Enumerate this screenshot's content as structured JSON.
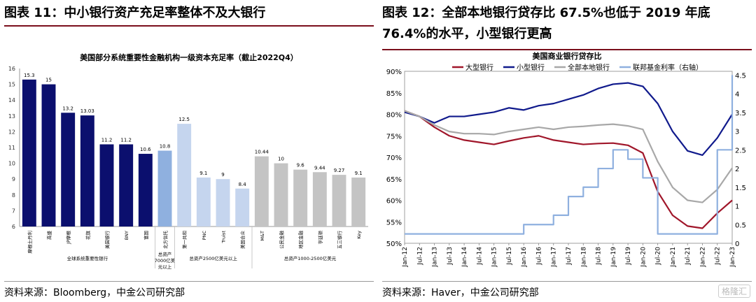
{
  "left": {
    "figure_title": "图表 11：中小银行资产充足率整体不及大银行",
    "source": "资料来源：Bloomberg，中金公司研究部"
  },
  "right": {
    "figure_title": "图表 12：全部本地银行贷存比 67.5%也低于 2019 年底 76.4%的水平，小型银行更高",
    "source": "资料来源：Haver，中金公司研究部"
  },
  "watermark": "格隆汇",
  "chart_data": [
    {
      "type": "bar",
      "title": "美国部分系统重要性金融机构一级资本充足率（截止2022Q4）",
      "categories": [
        "摩根士丹利",
        "高盛",
        "JP摩根",
        "花旗",
        "美国银行",
        "BNY",
        "富国",
        "北方信托",
        "第一共和",
        "PNC",
        "Truist",
        "美国合众",
        "M&T",
        "公民金融",
        "地区金融",
        "亨廷顿",
        "五三银行",
        "Key"
      ],
      "values": [
        15.3,
        15,
        13.2,
        13.03,
        11.2,
        11.2,
        10.6,
        10.8,
        12.5,
        9.1,
        9,
        8.4,
        10.44,
        10,
        9.6,
        9.44,
        9.27,
        9.1
      ],
      "value_labels": [
        "15.3",
        "15",
        "13.2",
        "13.03",
        "11.2",
        "11.2",
        "10.6",
        "10.8",
        "12.5",
        "9.1",
        "9",
        "8.4",
        "10.44",
        "10",
        "9.6",
        "9.44",
        "9.27",
        "9.1"
      ],
      "groups": [
        {
          "label": "全球系统重要性银行",
          "start": 0,
          "end": 6,
          "color": "#0b0f6e"
        },
        {
          "label": "总资产7000亿美元以上",
          "start": 7,
          "end": 7,
          "color": "#8fb0df"
        },
        {
          "label": "总资产2500亿美元以上",
          "start": 8,
          "end": 11,
          "color": "#c5d5ee"
        },
        {
          "label": "总资产1000-2500亿美元",
          "start": 12,
          "end": 17,
          "color": "#c4c4c4"
        }
      ],
      "ylim": [
        6,
        16
      ],
      "yticks": [
        6,
        7,
        8,
        9,
        10,
        11,
        12,
        13,
        14,
        15,
        16
      ],
      "grid": false
    },
    {
      "type": "line",
      "title": "美国商业银行贷存比",
      "x_ticks": [
        "Jan-12",
        "Jul-12",
        "Jan-13",
        "Jul-13",
        "Jan-14",
        "Jul-14",
        "Jan-15",
        "Jul-15",
        "Jan-16",
        "Jul-16",
        "Jan-17",
        "Jul-17",
        "Jan-18",
        "Jul-18",
        "Jan-19",
        "Jul-19",
        "Jan-20",
        "Jul-20",
        "Jan-21",
        "Jul-21",
        "Jan-22",
        "Jul-22",
        "Jan-23"
      ],
      "y_left_ticks": [
        "90%",
        "85%",
        "80%",
        "75%",
        "70%",
        "65%",
        "60%",
        "55%",
        "50%"
      ],
      "y_right_ticks": [
        "4.5",
        "4",
        "3.5",
        "3",
        "2.5",
        "2",
        "1.5",
        "1",
        "0.5",
        "0"
      ],
      "ylim_left": [
        50,
        90
      ],
      "ylim_right": [
        0,
        4.6
      ],
      "legend_position": "top",
      "series": [
        {
          "name": "大型银行",
          "axis": "left",
          "color": "#a0162a",
          "x": [
            "Jan-12",
            "Jul-12",
            "Jan-13",
            "Jul-13",
            "Jan-14",
            "Jul-14",
            "Jan-15",
            "Jul-15",
            "Jan-16",
            "Jul-16",
            "Jan-17",
            "Jul-17",
            "Jan-18",
            "Jul-18",
            "Jan-19",
            "Jul-19",
            "Jan-20",
            "Jul-20",
            "Jan-21",
            "Jul-21",
            "Jan-22",
            "Jul-22",
            "Jan-23"
          ],
          "values": [
            80.8,
            79.5,
            77,
            75,
            74,
            73.5,
            73,
            73.8,
            74.5,
            75,
            74,
            73.5,
            73,
            73.2,
            73.3,
            72.8,
            71,
            62,
            56.5,
            54,
            53.5,
            57,
            60
          ]
        },
        {
          "name": "小型银行",
          "axis": "left",
          "color": "#101a8c",
          "x": [
            "Jan-12",
            "Jul-12",
            "Jan-13",
            "Jul-13",
            "Jan-14",
            "Jul-14",
            "Jan-15",
            "Jul-15",
            "Jan-16",
            "Jul-16",
            "Jan-17",
            "Jul-17",
            "Jan-18",
            "Jul-18",
            "Jan-19",
            "Jul-19",
            "Jan-20",
            "Jul-20",
            "Jan-21",
            "Jul-21",
            "Jan-22",
            "Jul-22",
            "Jan-23"
          ],
          "values": [
            80.5,
            79.5,
            78,
            79.5,
            79.5,
            80,
            80.5,
            81.5,
            81,
            82,
            82.5,
            83.5,
            84.5,
            86,
            87,
            87.3,
            86.5,
            82.5,
            76,
            71.5,
            70.5,
            74.5,
            80
          ]
        },
        {
          "name": "全部本地银行",
          "axis": "left",
          "color": "#a8a8a8",
          "x": [
            "Jan-12",
            "Jul-12",
            "Jan-13",
            "Jul-13",
            "Jan-14",
            "Jul-14",
            "Jan-15",
            "Jul-15",
            "Jan-16",
            "Jul-16",
            "Jan-17",
            "Jul-17",
            "Jan-18",
            "Jul-18",
            "Jan-19",
            "Jul-19",
            "Jan-20",
            "Jul-20",
            "Jan-21",
            "Jul-21",
            "Jan-22",
            "Jul-22",
            "Jan-23"
          ],
          "values": [
            80.8,
            79.5,
            77.5,
            76,
            75.5,
            75.5,
            75.3,
            76,
            76.5,
            77,
            76.5,
            77,
            77.2,
            77.5,
            77.7,
            77.3,
            76.5,
            69,
            63,
            60,
            59.5,
            62.5,
            67.5
          ]
        },
        {
          "name": "联邦基金利率（右轴）",
          "axis": "right",
          "color": "#8fb0df",
          "x": [
            "Jan-12",
            "Jul-12",
            "Jan-13",
            "Jul-13",
            "Jan-14",
            "Jul-14",
            "Jan-15",
            "Jul-15",
            "Jan-16",
            "Jul-16",
            "Jan-17",
            "Jul-17",
            "Jan-18",
            "Jul-18",
            "Jan-19",
            "Jul-19",
            "Jan-20",
            "Jul-20",
            "Jan-21",
            "Jul-21",
            "Jan-22",
            "Jul-22",
            "Jan-23"
          ],
          "values": [
            0.25,
            0.25,
            0.25,
            0.25,
            0.25,
            0.25,
            0.25,
            0.25,
            0.5,
            0.5,
            0.75,
            1.25,
            1.5,
            2,
            2.5,
            2.25,
            1.75,
            0.25,
            0.25,
            0.25,
            0.25,
            2.5,
            4.5
          ]
        }
      ],
      "grid": false
    }
  ]
}
